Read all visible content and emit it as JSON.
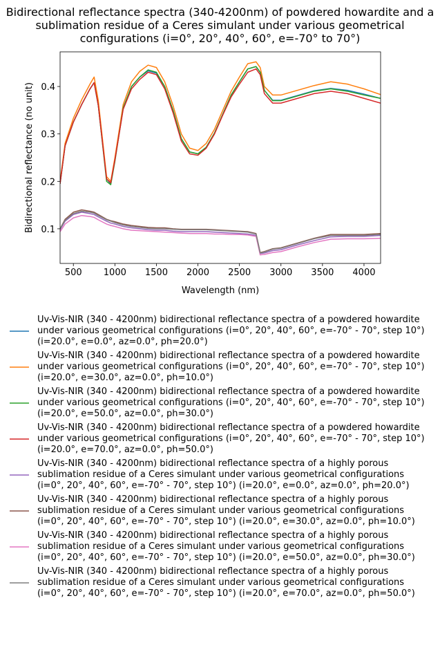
{
  "chart_data": {
    "type": "line",
    "title": "Bidirectional reflectance spectra (340-4200nm) of powdered howardite and a sublimation residue of a Ceres simulant under various geometrical configurations (i=0°, 20°, 40°, 60°, e=-70° to 70°)",
    "x_label": "Wavelength (nm)",
    "y_label": "Bidirectional reflectance (no unit)",
    "xlim": [
      340,
      4200
    ],
    "ylim": [
      0.027,
      0.473
    ],
    "xticks": [
      500,
      1000,
      1500,
      2000,
      2500,
      3000,
      3500,
      4000
    ],
    "yticks": [
      0.1,
      0.2,
      0.3,
      0.4
    ],
    "x": [
      340,
      400,
      500,
      600,
      700,
      750,
      800,
      900,
      950,
      1000,
      1100,
      1200,
      1300,
      1400,
      1500,
      1600,
      1700,
      1800,
      1900,
      2000,
      2100,
      2200,
      2300,
      2400,
      2500,
      2600,
      2700,
      2750,
      2800,
      2900,
      3000,
      3200,
      3400,
      3600,
      3800,
      4000,
      4200
    ],
    "series": [
      {
        "name": "Uv-Vis-NIR (340 - 4200nm) bidirectional reflectance spectra of a powdered howardite under various geometrical configurations (i=0°, 20°, 40°, 60°, e=-70° - 70°, step 10°) (i=20.0°, e=0.0°, az=0.0°, ph=20.0°)",
        "color": "#1f77b4",
        "values": [
          0.195,
          0.275,
          0.325,
          0.362,
          0.395,
          0.408,
          0.36,
          0.205,
          0.195,
          0.245,
          0.355,
          0.4,
          0.42,
          0.433,
          0.428,
          0.4,
          0.35,
          0.29,
          0.262,
          0.258,
          0.272,
          0.302,
          0.342,
          0.382,
          0.41,
          0.437,
          0.442,
          0.43,
          0.392,
          0.371,
          0.371,
          0.381,
          0.391,
          0.396,
          0.392,
          0.384,
          0.375
        ]
      },
      {
        "name": "Uv-Vis-NIR (340 - 4200nm) bidirectional reflectance spectra of a powdered howardite under various geometrical configurations (i=0°, 20°, 40°, 60°, e=-70° - 70°, step 10°) (i=20.0°, e=30.0°, az=0.0°, ph=10.0°)",
        "color": "#ff7f0e",
        "values": [
          0.2,
          0.28,
          0.333,
          0.372,
          0.405,
          0.42,
          0.37,
          0.21,
          0.2,
          0.25,
          0.362,
          0.41,
          0.432,
          0.445,
          0.44,
          0.41,
          0.36,
          0.3,
          0.27,
          0.265,
          0.28,
          0.31,
          0.35,
          0.39,
          0.42,
          0.448,
          0.452,
          0.44,
          0.4,
          0.382,
          0.382,
          0.392,
          0.402,
          0.41,
          0.405,
          0.395,
          0.383
        ]
      },
      {
        "name": "Uv-Vis-NIR (340 - 4200nm) bidirectional reflectance spectra of a powdered howardite under various geometrical configurations (i=0°, 20°, 40°, 60°, e=-70° - 70°, step 10°) (i=20.0°, e=50.0°, az=0.0°, ph=30.0°)",
        "color": "#2ca02c",
        "values": [
          0.195,
          0.275,
          0.325,
          0.362,
          0.395,
          0.408,
          0.36,
          0.2,
          0.193,
          0.242,
          0.355,
          0.4,
          0.42,
          0.435,
          0.43,
          0.4,
          0.35,
          0.29,
          0.262,
          0.258,
          0.272,
          0.302,
          0.342,
          0.382,
          0.41,
          0.437,
          0.442,
          0.43,
          0.392,
          0.37,
          0.37,
          0.38,
          0.39,
          0.395,
          0.39,
          0.382,
          0.375
        ]
      },
      {
        "name": "Uv-Vis-NIR (340 - 4200nm) bidirectional reflectance spectra of a powdered howardite under various geometrical configurations (i=0°, 20°, 40°, 60°, e=-70° - 70°, step 10°) (i=20.0°, e=70.0°, az=0.0°, ph=50.0°)",
        "color": "#d62728",
        "values": [
          0.195,
          0.275,
          0.325,
          0.362,
          0.395,
          0.408,
          0.36,
          0.205,
          0.197,
          0.245,
          0.352,
          0.395,
          0.415,
          0.43,
          0.425,
          0.395,
          0.345,
          0.285,
          0.258,
          0.255,
          0.27,
          0.3,
          0.34,
          0.378,
          0.405,
          0.43,
          0.437,
          0.425,
          0.385,
          0.365,
          0.365,
          0.375,
          0.385,
          0.39,
          0.385,
          0.375,
          0.365
        ]
      },
      {
        "name": "Uv-Vis-NIR (340 - 4200nm) bidirectional reflectance spectra of a highly porous sublimation residue of a Ceres simulant under various geometrical configurations (i=0°, 20°, 40°, 60°, e=-70° - 70°, step 10°) (i=20.0°, e=0.0°, az=0.0°, ph=20.0°)",
        "color": "#9467bd",
        "values": [
          0.098,
          0.116,
          0.13,
          0.135,
          0.132,
          0.13,
          0.125,
          0.116,
          0.112,
          0.11,
          0.105,
          0.102,
          0.1,
          0.098,
          0.097,
          0.097,
          0.095,
          0.094,
          0.094,
          0.094,
          0.094,
          0.093,
          0.092,
          0.091,
          0.09,
          0.089,
          0.086,
          0.048,
          0.049,
          0.054,
          0.056,
          0.066,
          0.075,
          0.083,
          0.084,
          0.084,
          0.086
        ]
      },
      {
        "name": "Uv-Vis-NIR (340 - 4200nm) bidirectional reflectance spectra of a highly porous sublimation residue of a Ceres simulant under various geometrical configurations (i=0°, 20°, 40°, 60°, e=-70° - 70°, step 10°) (i=20.0°, e=30.0°, az=0.0°, ph=10.0°)",
        "color": "#8c564b",
        "values": [
          0.1,
          0.12,
          0.135,
          0.14,
          0.137,
          0.135,
          0.13,
          0.12,
          0.117,
          0.115,
          0.11,
          0.107,
          0.105,
          0.103,
          0.102,
          0.102,
          0.1,
          0.099,
          0.099,
          0.099,
          0.099,
          0.098,
          0.097,
          0.096,
          0.095,
          0.094,
          0.09,
          0.05,
          0.052,
          0.058,
          0.06,
          0.07,
          0.08,
          0.088,
          0.088,
          0.088,
          0.09
        ]
      },
      {
        "name": "Uv-Vis-NIR (340 - 4200nm) bidirectional reflectance spectra of a highly porous sublimation residue of a Ceres simulant under various geometrical configurations (i=0°, 20°, 40°, 60°, e=-70° - 70°, step 10°) (i=20.0°, e=50.0°, az=0.0°, ph=30.0°)",
        "color": "#e377c2",
        "values": [
          0.094,
          0.11,
          0.123,
          0.128,
          0.126,
          0.124,
          0.119,
          0.11,
          0.107,
          0.105,
          0.1,
          0.097,
          0.096,
          0.095,
          0.094,
          0.093,
          0.092,
          0.091,
          0.09,
          0.09,
          0.09,
          0.089,
          0.089,
          0.088,
          0.088,
          0.087,
          0.084,
          0.045,
          0.046,
          0.05,
          0.052,
          0.062,
          0.071,
          0.078,
          0.079,
          0.079,
          0.08
        ]
      },
      {
        "name": "Uv-Vis-NIR (340 - 4200nm) bidirectional reflectance spectra of a highly porous sublimation residue of a Ceres simulant under various geometrical configurations (i=0°, 20°, 40°, 60°, e=-70° - 70°, step 10°) (i=20.0°, e=70.0°, az=0.0°, ph=50.0°)",
        "color": "#7f7f7f",
        "values": [
          0.1,
          0.118,
          0.132,
          0.137,
          0.135,
          0.133,
          0.128,
          0.119,
          0.116,
          0.113,
          0.108,
          0.105,
          0.103,
          0.101,
          0.1,
          0.1,
          0.099,
          0.098,
          0.098,
          0.098,
          0.098,
          0.097,
          0.096,
          0.095,
          0.094,
          0.093,
          0.089,
          0.049,
          0.051,
          0.057,
          0.059,
          0.069,
          0.079,
          0.086,
          0.086,
          0.086,
          0.088
        ]
      }
    ]
  }
}
